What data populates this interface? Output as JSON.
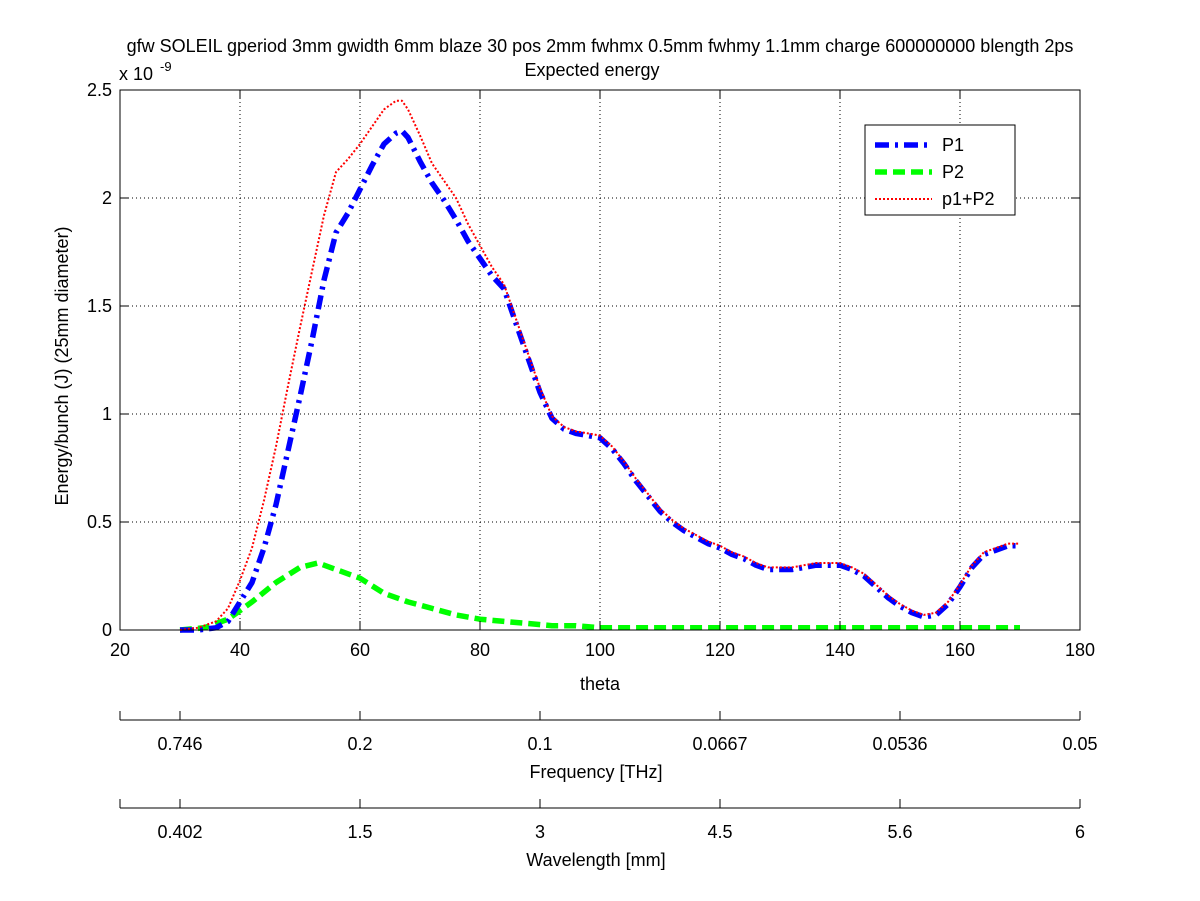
{
  "chart_data": {
    "type": "line",
    "title": "gfw SOLEIL gperiod 3mm gwidth 6mm blaze 30 pos 2mm fwhmx 0.5mm fwhmy 1.1mm charge 600000000 blength 2ps",
    "subtitle": "Expected energy",
    "xlabel": "theta",
    "ylabel": "Energy/bunch (J) (25mm diameter)",
    "y_exponent_label": "x 10",
    "y_exponent_power": "-9",
    "xlim": [
      20,
      180
    ],
    "ylim": [
      0,
      2.5
    ],
    "xticks": [
      20,
      40,
      60,
      80,
      100,
      120,
      140,
      160,
      180
    ],
    "yticks": [
      0,
      0.5,
      1,
      1.5,
      2,
      2.5
    ],
    "xtick_labels": [
      "20",
      "40",
      "60",
      "80",
      "100",
      "120",
      "140",
      "160",
      "180"
    ],
    "ytick_labels": [
      "0",
      "0.5",
      "1",
      "1.5",
      "2",
      "2.5"
    ],
    "grid": true,
    "legend_position": "top-right",
    "series": [
      {
        "name": "P1",
        "color": "#0000ff",
        "style": "dash-dot",
        "x": [
          30,
          33,
          36,
          38,
          40,
          42,
          44,
          46,
          48,
          50,
          52,
          54,
          56,
          58,
          60,
          62,
          64,
          66,
          67,
          68,
          70,
          72,
          74,
          76,
          78,
          80,
          82,
          84,
          86,
          88,
          90,
          92,
          94,
          96,
          98,
          100,
          102,
          104,
          106,
          108,
          110,
          112,
          114,
          116,
          118,
          120,
          122,
          124,
          126,
          128,
          130,
          132,
          134,
          136,
          138,
          140,
          142,
          144,
          146,
          148,
          150,
          152,
          154,
          156,
          158,
          160,
          162,
          164,
          166,
          168,
          170
        ],
        "values": [
          0,
          0,
          0.01,
          0.04,
          0.13,
          0.22,
          0.38,
          0.58,
          0.83,
          1.08,
          1.34,
          1.62,
          1.84,
          1.93,
          2.04,
          2.15,
          2.25,
          2.3,
          2.31,
          2.28,
          2.17,
          2.07,
          1.99,
          1.9,
          1.8,
          1.72,
          1.64,
          1.58,
          1.42,
          1.26,
          1.1,
          0.98,
          0.93,
          0.91,
          0.9,
          0.89,
          0.84,
          0.77,
          0.69,
          0.62,
          0.55,
          0.5,
          0.46,
          0.43,
          0.4,
          0.38,
          0.35,
          0.33,
          0.3,
          0.28,
          0.28,
          0.28,
          0.29,
          0.3,
          0.3,
          0.3,
          0.28,
          0.25,
          0.2,
          0.15,
          0.11,
          0.08,
          0.06,
          0.07,
          0.12,
          0.2,
          0.29,
          0.35,
          0.37,
          0.39,
          0.39
        ]
      },
      {
        "name": "P2",
        "color": "#00ff00",
        "style": "dashed",
        "x": [
          30,
          34,
          38,
          42,
          46,
          50,
          53,
          56,
          60,
          64,
          68,
          72,
          76,
          80,
          84,
          88,
          92,
          96,
          100,
          110,
          120,
          130,
          140,
          150,
          160,
          170
        ],
        "values": [
          0,
          0.01,
          0.05,
          0.13,
          0.22,
          0.29,
          0.31,
          0.28,
          0.24,
          0.17,
          0.13,
          0.1,
          0.07,
          0.05,
          0.04,
          0.03,
          0.02,
          0.02,
          0.01,
          0.01,
          0.01,
          0.01,
          0.01,
          0.01,
          0.01,
          0.01
        ]
      },
      {
        "name": "p1+P2",
        "color": "#ff0000",
        "style": "dotted",
        "x": [
          30,
          33,
          36,
          38,
          40,
          42,
          44,
          46,
          48,
          50,
          52,
          54,
          56,
          58,
          60,
          62,
          64,
          66,
          67,
          68,
          70,
          72,
          74,
          76,
          78,
          80,
          82,
          84,
          86,
          88,
          90,
          92,
          94,
          96,
          98,
          100,
          102,
          104,
          106,
          108,
          110,
          112,
          114,
          116,
          118,
          120,
          122,
          124,
          126,
          128,
          130,
          132,
          134,
          136,
          138,
          140,
          142,
          144,
          146,
          148,
          150,
          152,
          154,
          156,
          158,
          160,
          162,
          164,
          166,
          168,
          170
        ],
        "values": [
          0,
          0.01,
          0.04,
          0.1,
          0.23,
          0.38,
          0.6,
          0.85,
          1.13,
          1.4,
          1.66,
          1.92,
          2.12,
          2.18,
          2.25,
          2.33,
          2.41,
          2.45,
          2.45,
          2.41,
          2.29,
          2.16,
          2.08,
          2.0,
          1.88,
          1.78,
          1.68,
          1.6,
          1.44,
          1.28,
          1.12,
          0.99,
          0.94,
          0.92,
          0.91,
          0.9,
          0.85,
          0.78,
          0.7,
          0.63,
          0.56,
          0.51,
          0.47,
          0.44,
          0.41,
          0.39,
          0.36,
          0.34,
          0.31,
          0.29,
          0.29,
          0.29,
          0.3,
          0.31,
          0.31,
          0.31,
          0.29,
          0.26,
          0.21,
          0.16,
          0.12,
          0.09,
          0.07,
          0.08,
          0.13,
          0.21,
          0.3,
          0.36,
          0.38,
          0.4,
          0.4
        ]
      }
    ],
    "secondary_axes": [
      {
        "label": "Frequency [THz]",
        "tick_labels": [
          "0.746",
          "0.2",
          "0.1",
          "0.0667",
          "0.0536",
          "0.05"
        ]
      },
      {
        "label": "Wavelength [mm]",
        "tick_labels": [
          "0.402",
          "1.5",
          "3",
          "4.5",
          "5.6",
          "6"
        ]
      }
    ]
  }
}
